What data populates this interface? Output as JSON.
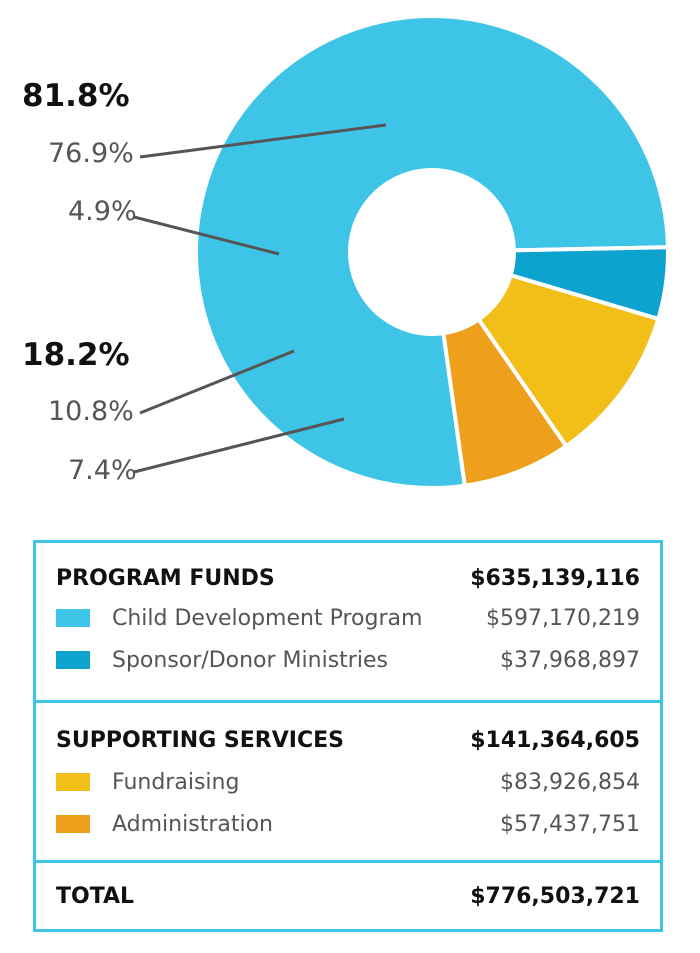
{
  "chart_data": {
    "type": "pie",
    "donut": true,
    "series": [
      {
        "name": "Child Development Program",
        "value": 76.9,
        "amount": "$597,170,219",
        "color": "#3ec4e6"
      },
      {
        "name": "Sponsor/Donor Ministries",
        "value": 4.9,
        "amount": "$37,968,897",
        "color": "#0da3cf"
      },
      {
        "name": "Fundraising",
        "value": 10.8,
        "amount": "$83,926,854",
        "color": "#f2be18"
      },
      {
        "name": "Administration",
        "value": 7.4,
        "amount": "$57,437,751",
        "color": "#ee9f1c"
      }
    ],
    "group_labels": [
      "81.8%",
      "18.2%"
    ],
    "slice_labels": [
      "76.9%",
      "4.9%",
      "10.8%",
      "7.4%"
    ]
  },
  "legend": {
    "program": {
      "title": "PROGRAM FUNDS",
      "total": "$635,139,116",
      "items": [
        {
          "label": "Child Development Program",
          "amount": "$597,170,219",
          "color": "#3ec4e6"
        },
        {
          "label": "Sponsor/Donor Ministries",
          "amount": "$37,968,897",
          "color": "#0da3cf"
        }
      ]
    },
    "support": {
      "title": "SUPPORTING SERVICES",
      "total": "$141,364,605",
      "items": [
        {
          "label": "Fundraising",
          "amount": "$83,926,854",
          "color": "#f2be18"
        },
        {
          "label": "Administration",
          "amount": "$57,437,751",
          "color": "#ee9f1c"
        }
      ]
    },
    "total": {
      "title": "TOTAL",
      "amount": "$776,503,721"
    }
  }
}
